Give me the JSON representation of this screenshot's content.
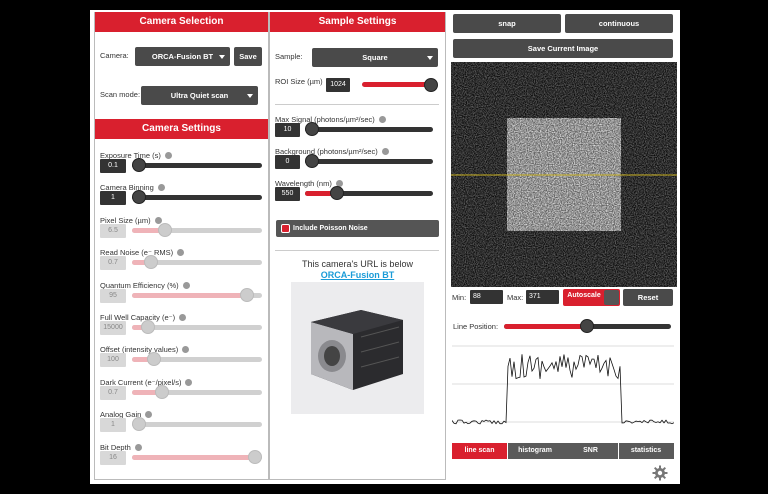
{
  "camera_selection": {
    "title": "Camera Selection",
    "camera_label": "Camera:",
    "camera_value": "ORCA-Fusion BT",
    "save_button": "Save",
    "scan_mode_label": "Scan mode:",
    "scan_mode_value": "Ultra Quiet scan"
  },
  "camera_settings": {
    "title": "Camera Settings",
    "sliders": [
      {
        "label": "Exposure Time (s)",
        "value": 0.1
      },
      {
        "label": "Camera Binning",
        "value": 1
      },
      {
        "label": "Pixel Size (µm)",
        "value": 6.5
      },
      {
        "label": "Read Noise (e⁻ RMS)",
        "value": 0.7
      },
      {
        "label": "Quantum Efficiency (%)",
        "value": 95
      },
      {
        "label": "Full Well Capacity (e⁻)",
        "value": 15000
      },
      {
        "label": "Offset (intensity values)",
        "value": 100
      },
      {
        "label": "Dark Current (e⁻/pixel/s)",
        "value": 0.7
      },
      {
        "label": "Analog Gain",
        "value": 1
      },
      {
        "label": "Bit Depth",
        "value": 16
      }
    ]
  },
  "sample_settings": {
    "title": "Sample Settings",
    "sample_label": "Sample:",
    "sample_value": "Square",
    "roi": {
      "label": "ROI Size (µm)",
      "value": 1024
    },
    "sliders": [
      {
        "label": "Max Signal (photons/µm²/sec)",
        "value": 10
      },
      {
        "label": "Background (photons/µm²/sec)",
        "value": 0
      },
      {
        "label": "Wavelength (nm)",
        "value": 550
      }
    ],
    "poisson_checkbox": "Include Poisson Noise",
    "url_text": "This camera's URL is below",
    "url_link": "ORCA-Fusion BT"
  },
  "viewer": {
    "snap": "snap",
    "continuous": "continuous",
    "save_image": "Save Current Image",
    "min_label": "Min:",
    "min_value": 88,
    "max_label": "Max:",
    "max_value": 371,
    "autoscale": "Autoscale",
    "reset": "Reset",
    "line_position_label": "Line Position:",
    "tabs": [
      "line scan",
      "histogram",
      "SNR",
      "statistics"
    ]
  }
}
